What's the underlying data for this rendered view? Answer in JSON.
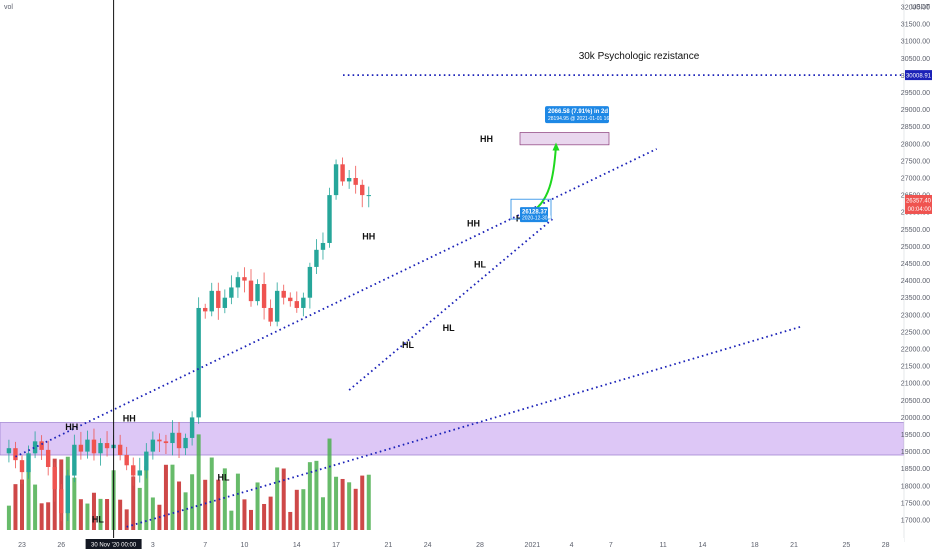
{
  "chart_data": {
    "type": "candlestick",
    "symbol_label": "vol",
    "currency": "USDT",
    "y_ticks": [
      17000,
      17500,
      18000,
      18500,
      19000,
      19500,
      20000,
      20500,
      21000,
      21500,
      22000,
      22500,
      23000,
      23500,
      24000,
      24500,
      25000,
      25500,
      26000,
      26500,
      27000,
      27500,
      28000,
      28500,
      29000,
      29500,
      30000,
      30500,
      31000,
      31500,
      32000
    ],
    "x_ticks": [
      {
        "label": "23",
        "t": 0
      },
      {
        "label": "26",
        "t": 3
      },
      {
        "label": "30 Nov '20",
        "t": 7
      },
      {
        "label": "3",
        "t": 10
      },
      {
        "label": "7",
        "t": 14
      },
      {
        "label": "10",
        "t": 17
      },
      {
        "label": "14",
        "t": 21
      },
      {
        "label": "17",
        "t": 24
      },
      {
        "label": "21",
        "t": 28
      },
      {
        "label": "24",
        "t": 31
      },
      {
        "label": "28",
        "t": 35
      },
      {
        "label": "2021",
        "t": 39
      },
      {
        "label": "4",
        "t": 42
      },
      {
        "label": "7",
        "t": 45
      },
      {
        "label": "11",
        "t": 49
      },
      {
        "label": "14",
        "t": 52
      },
      {
        "label": "18",
        "t": 56
      },
      {
        "label": "21",
        "t": 59
      },
      {
        "label": "25",
        "t": 63
      },
      {
        "label": "28",
        "t": 66
      }
    ],
    "crosshair_label": "30 Nov '20  00:00",
    "current_price": {
      "value": "26357.40",
      "countdown": "00:04:00"
    },
    "level_30k": {
      "value": "30008.91",
      "text": "30k Psychologic rezistance"
    },
    "target_box": {
      "line1": "2066.58 (7.91%) in 2d",
      "line2": "28194.95 @ 2021-01-01 16:00"
    },
    "entry_box": {
      "line1": "26128.37",
      "line2": "2020-12-30 16:00"
    },
    "support_zone": [
      18900,
      19850
    ],
    "labels": [
      {
        "text": "HH",
        "t": 3.8,
        "p": 19630
      },
      {
        "text": "HH",
        "t": 8.2,
        "p": 19880
      },
      {
        "text": "HH",
        "t": 26.5,
        "p": 25200
      },
      {
        "text": "HH",
        "t": 35.5,
        "p": 28050
      },
      {
        "text": "HH",
        "t": 34.5,
        "p": 25580
      },
      {
        "text": "HL",
        "t": 15.4,
        "p": 18160
      },
      {
        "text": "HL",
        "t": 29.5,
        "p": 22030
      },
      {
        "text": "HL",
        "t": 32.6,
        "p": 22530
      },
      {
        "text": "HL",
        "t": 35.0,
        "p": 24380
      },
      {
        "text": "HL",
        "t": 38.2,
        "p": 25730
      },
      {
        "text": "HL",
        "t": 5.8,
        "p": 16920
      }
    ],
    "trendlines": [
      {
        "from": [
          -0.5,
          18850
        ],
        "to": [
          48.5,
          27850
        ]
      },
      {
        "from": [
          25,
          20800
        ],
        "to": [
          40.7,
          25850
        ]
      },
      {
        "from": [
          8,
          16800
        ],
        "to": [
          59.5,
          22650
        ]
      }
    ],
    "closes": [
      19100,
      18750,
      18400,
      18950,
      19300,
      19050,
      18550,
      17900,
      17200,
      18300,
      19200,
      19000,
      19350,
      18950,
      19250,
      19100,
      19200,
      18900,
      18600,
      18300,
      18450,
      19000,
      19350,
      19300,
      19250,
      19550,
      19100,
      19400,
      20000,
      23200,
      23100,
      23700,
      23200,
      23500,
      23800,
      24100,
      24000,
      23400,
      23900,
      23200,
      22800,
      23700,
      23500,
      23400,
      23200,
      23500,
      24400,
      24900,
      25100,
      26500,
      27400,
      26900,
      27000,
      26800,
      26500,
      26500
    ],
    "candle_t_start": -1,
    "candle_t_step": 0.5
  }
}
